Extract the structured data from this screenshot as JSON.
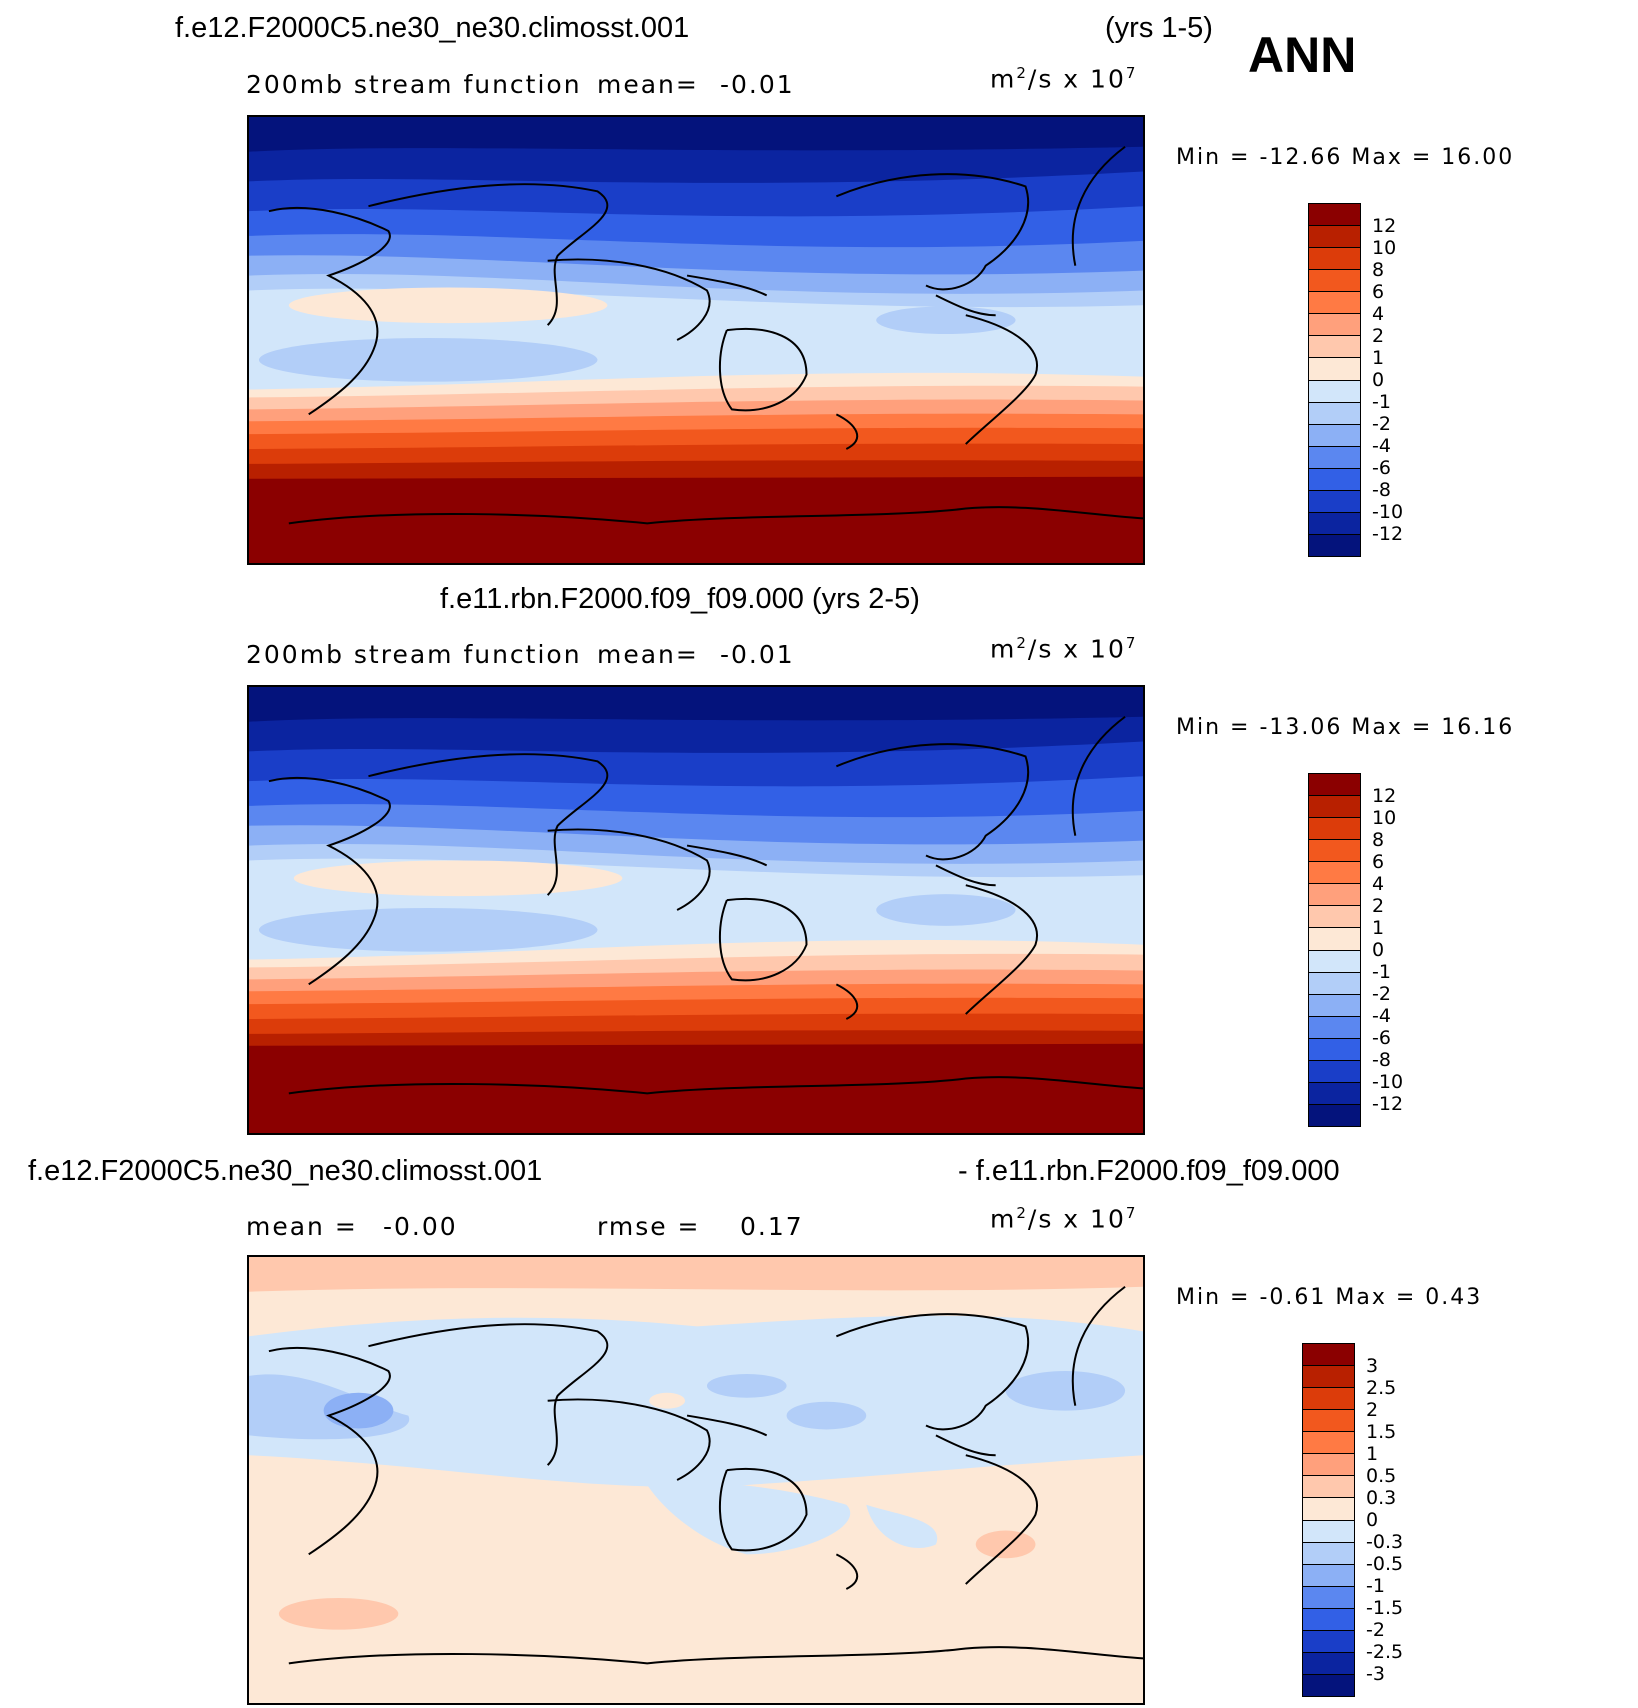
{
  "season": "ANN",
  "units": {
    "base": "m",
    "exp2": "2",
    "mid": "/s x 10",
    "exp7": "7"
  },
  "panels": [
    {
      "id": "test",
      "title": "f.e12.F2000C5.ne30_ne30.climosst.001",
      "title_right": "(yrs 1-5)",
      "left_label": "200mb stream function",
      "stat_label": "mean=",
      "stat_value": "-0.01",
      "minmax": "Min = -12.66 Max =  16.00",
      "colorbar": {
        "labels": [
          "12",
          "10",
          "8",
          "6",
          "4",
          "2",
          "1",
          "0",
          "-1",
          "-2",
          "-4",
          "-6",
          "-8",
          "-10",
          "-12"
        ],
        "colors": [
          "#8b0000",
          "#b82000",
          "#dc3c0a",
          "#f2581e",
          "#ff7a44",
          "#ffa07c",
          "#ffc8ad",
          "#fde8d6",
          "#d2e6fa",
          "#b2cef8",
          "#8cb0f5",
          "#5b87f0",
          "#3260e6",
          "#1a3ec8",
          "#0b24a0",
          "#04137c"
        ]
      },
      "map": {
        "type": "stream_function",
        "field": "200mb",
        "levels": [
          -12,
          -10,
          -8,
          -6,
          -4,
          -2,
          -1,
          0,
          1,
          2,
          4,
          6,
          8,
          10,
          12
        ]
      }
    },
    {
      "id": "control",
      "title": "f.e11.rbn.F2000.f09_f09.000 (yrs 2-5)",
      "left_label": "200mb stream function",
      "stat_label": "mean=",
      "stat_value": "-0.01",
      "minmax": "Min = -13.06 Max =  16.16",
      "colorbar": {
        "labels": [
          "12",
          "10",
          "8",
          "6",
          "4",
          "2",
          "1",
          "0",
          "-1",
          "-2",
          "-4",
          "-6",
          "-8",
          "-10",
          "-12"
        ],
        "colors": [
          "#8b0000",
          "#b82000",
          "#dc3c0a",
          "#f2581e",
          "#ff7a44",
          "#ffa07c",
          "#ffc8ad",
          "#fde8d6",
          "#d2e6fa",
          "#b2cef8",
          "#8cb0f5",
          "#5b87f0",
          "#3260e6",
          "#1a3ec8",
          "#0b24a0",
          "#04137c"
        ]
      },
      "map": {
        "type": "stream_function",
        "field": "200mb",
        "levels": [
          -12,
          -10,
          -8,
          -6,
          -4,
          -2,
          -1,
          0,
          1,
          2,
          4,
          6,
          8,
          10,
          12
        ]
      }
    },
    {
      "id": "difference",
      "title_left": "f.e12.F2000C5.ne30_ne30.climosst.001",
      "title_right": "- f.e11.rbn.F2000.f09_f09.000",
      "mean_label": "mean =",
      "mean_value": "-0.00",
      "rmse_label": "rmse =",
      "rmse_value": "0.17",
      "minmax": "Min =  -0.61 Max =   0.43",
      "colorbar": {
        "labels": [
          "3",
          "2.5",
          "2",
          "1.5",
          "1",
          "0.5",
          "0.3",
          "0",
          "-0.3",
          "-0.5",
          "-1",
          "-1.5",
          "-2",
          "-2.5",
          "-3"
        ],
        "colors": [
          "#8b0000",
          "#b82000",
          "#dc3c0a",
          "#f2581e",
          "#ff7a44",
          "#ffa07c",
          "#ffc8ad",
          "#fde8d6",
          "#d2e6fa",
          "#b2cef8",
          "#8cb0f5",
          "#5b87f0",
          "#3260e6",
          "#1a3ec8",
          "#0b24a0",
          "#04137c"
        ]
      },
      "map": {
        "type": "difference",
        "levels": [
          -3,
          -2.5,
          -2,
          -1.5,
          -1,
          -0.5,
          -0.3,
          0,
          0.3,
          0.5,
          1,
          1.5,
          2,
          2.5,
          3
        ]
      }
    }
  ]
}
